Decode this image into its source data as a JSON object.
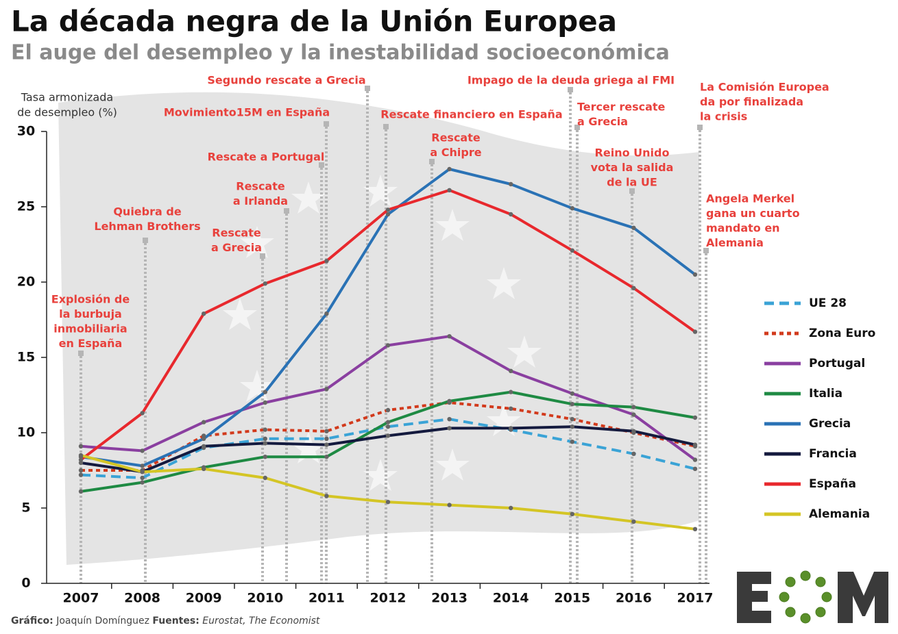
{
  "chart_data": {
    "type": "line",
    "title": "La década negra de la Unión Europea",
    "subtitle": "El auge del desempleo y la inestabilidad socioeconómica",
    "y_label": [
      "Tasa armonizada",
      "de desempleo (%)"
    ],
    "categories": [
      "2007",
      "2008",
      "2009",
      "2010",
      "2011",
      "2012",
      "2013",
      "2014",
      "2015",
      "2016",
      "2017"
    ],
    "ylim": [
      0,
      30
    ],
    "yticks": [
      0,
      5,
      10,
      15,
      20,
      25,
      30
    ],
    "series": [
      {
        "name": "UE 28",
        "color": "#3aa3d6",
        "dash": "dashed",
        "values": [
          7.2,
          7.0,
          9.0,
          9.6,
          9.6,
          10.4,
          10.9,
          10.2,
          9.4,
          8.6,
          7.6
        ]
      },
      {
        "name": "Zona Euro",
        "color": "#d23a1c",
        "dash": "dotted",
        "values": [
          7.5,
          7.5,
          9.8,
          10.2,
          10.1,
          11.5,
          12.0,
          11.6,
          10.9,
          10.0,
          9.1
        ]
      },
      {
        "name": "Portugal",
        "color": "#8a3fa0",
        "values": [
          9.1,
          8.8,
          10.7,
          12.0,
          12.9,
          15.8,
          16.4,
          14.1,
          12.6,
          11.2,
          8.2
        ]
      },
      {
        "name": "Italia",
        "color": "#1e8a43",
        "values": [
          6.1,
          6.7,
          7.7,
          8.4,
          8.4,
          10.7,
          12.1,
          12.7,
          11.9,
          11.7,
          11.0
        ]
      },
      {
        "name": "Grecia",
        "color": "#2a72b5",
        "values": [
          8.4,
          7.8,
          9.6,
          12.7,
          17.9,
          24.5,
          27.5,
          26.5,
          24.9,
          23.6,
          20.5
        ]
      },
      {
        "name": "Francia",
        "color": "#141a3e",
        "values": [
          8.0,
          7.4,
          9.1,
          9.3,
          9.2,
          9.8,
          10.3,
          10.3,
          10.4,
          10.1,
          9.2
        ]
      },
      {
        "name": "España",
        "color": "#e8282d",
        "values": [
          8.2,
          11.3,
          17.9,
          19.9,
          21.4,
          24.8,
          26.1,
          24.5,
          22.1,
          19.6,
          16.7
        ]
      },
      {
        "name": "Alemania",
        "color": "#d4c525",
        "values": [
          8.5,
          7.4,
          7.6,
          7.0,
          5.8,
          5.4,
          5.2,
          5.0,
          4.6,
          4.1,
          3.6
        ]
      }
    ],
    "annotations": [
      [
        "Explosión de",
        "la burbuja",
        "inmobiliaria",
        "en España"
      ],
      [
        "Quiebra de",
        "Lehman Brothers"
      ],
      [
        "Rescate",
        "a Grecia"
      ],
      [
        "Rescate",
        "a Irlanda"
      ],
      [
        "Rescate a Portugal"
      ],
      [
        "Movimiento15M en España"
      ],
      [
        "Segundo rescate a Grecia"
      ],
      [
        "Rescate financiero en España"
      ],
      [
        "Rescate",
        "a Chipre"
      ],
      [
        "Impago de la deuda griega al FMI"
      ],
      [
        "Tercer rescate",
        "a Grecia"
      ],
      [
        "Reino Unido",
        "vota la salida",
        "de la UE"
      ],
      [
        "La Comisión Europea",
        "da por finalizada",
        "la crisis"
      ],
      [
        "Angela Merkel",
        "gana un cuarto",
        "mandato en",
        "Alemania"
      ]
    ],
    "footer": {
      "graphic_label": "Gráfico:",
      "author": "Joaquín Domínguez",
      "sources_label": "Fuentes:",
      "sources": "Eurostat, The Economist"
    },
    "legend": "right",
    "annotation_color": "#e8413c"
  }
}
